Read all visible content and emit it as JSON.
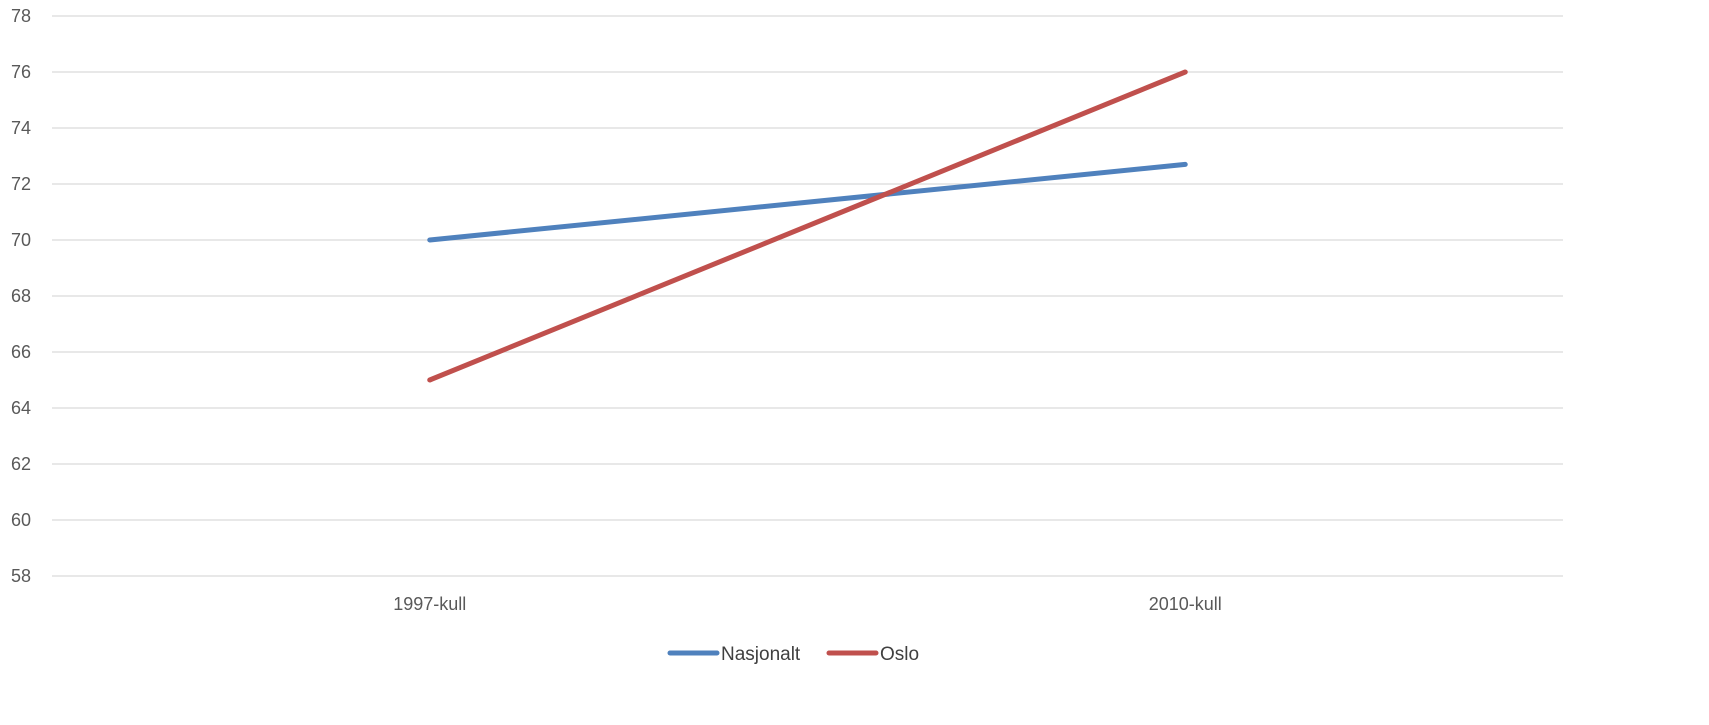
{
  "chart_data": {
    "type": "line",
    "title": "",
    "xlabel": "",
    "ylabel": "",
    "categories": [
      "1997-kull",
      "2010-kull"
    ],
    "ylim": [
      58,
      78
    ],
    "ystep": 2,
    "yticks": [
      "58",
      "60",
      "62",
      "64",
      "66",
      "68",
      "70",
      "72",
      "74",
      "76",
      "78"
    ],
    "grid": true,
    "legend_position": "bottom",
    "series": [
      {
        "name": "Nasjonalt",
        "values": [
          70,
          72.7
        ],
        "color": "#4F81BD"
      },
      {
        "name": "Oslo",
        "values": [
          65,
          76
        ],
        "color": "#C0504D"
      }
    ]
  }
}
